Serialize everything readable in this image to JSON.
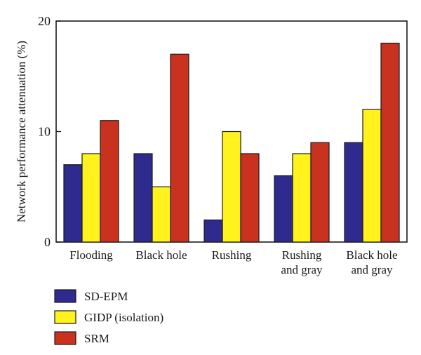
{
  "chart_data": {
    "type": "bar",
    "ylabel": "Network performance attenuation (%)",
    "ylim": [
      0,
      20
    ],
    "yticks": [
      0,
      10,
      20
    ],
    "categories": [
      [
        "Flooding"
      ],
      [
        "Black hole"
      ],
      [
        "Rushing"
      ],
      [
        "Rushing",
        "and gray"
      ],
      [
        "Black hole",
        "and gray"
      ]
    ],
    "series": [
      {
        "name": "SD-EPM",
        "color": "#2e2a8e",
        "values": [
          7,
          8,
          2,
          6,
          9
        ]
      },
      {
        "name": "GIDP (isolation)",
        "color": "#fff21d",
        "values": [
          8,
          5,
          10,
          8,
          12
        ]
      },
      {
        "name": "SRM",
        "color": "#c8321e",
        "values": [
          11,
          17,
          8,
          9,
          18
        ]
      }
    ],
    "grid": false,
    "legend_position": "bottom-left"
  }
}
